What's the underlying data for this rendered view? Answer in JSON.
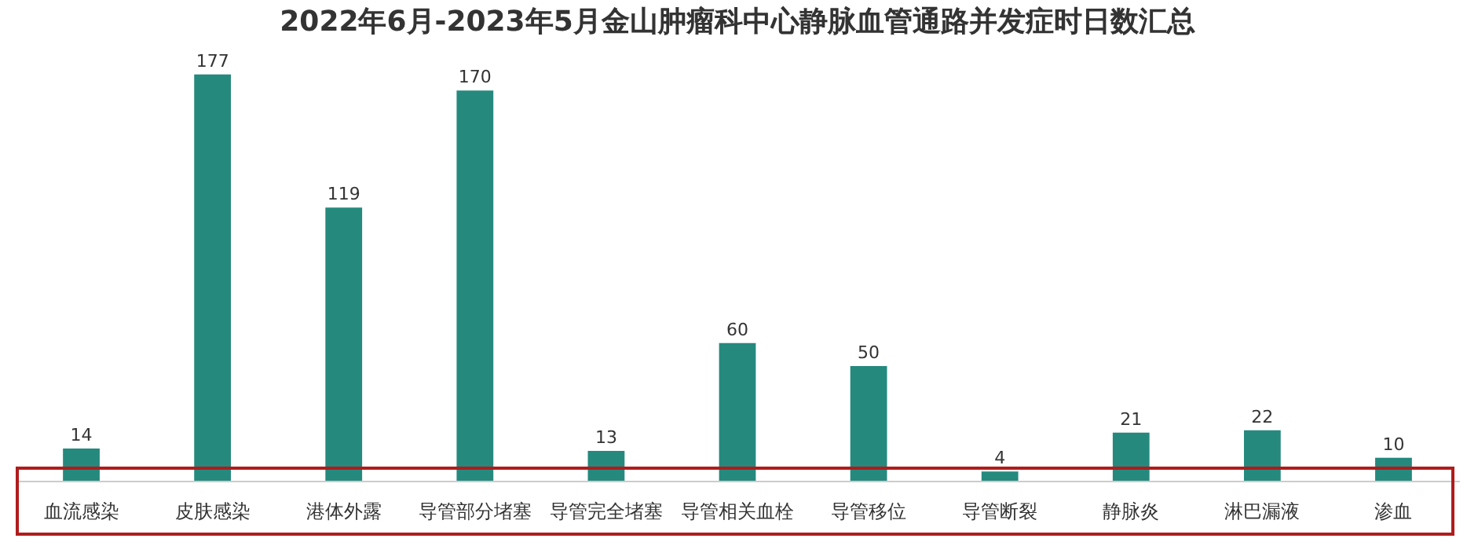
{
  "chart_data": {
    "type": "bar",
    "title": "2022年6月-2023年5月金山肿瘤科中心静脉血管通路并发症时日数汇总",
    "categories": [
      "血流感染",
      "皮肤感染",
      "港体外露",
      "导管部分堵塞",
      "导管完全堵塞",
      "导管相关血栓",
      "导管移位",
      "导管断裂",
      "静脉炎",
      "淋巴漏液",
      "渗血"
    ],
    "values": [
      14,
      177,
      119,
      170,
      13,
      60,
      50,
      4,
      21,
      22,
      10
    ],
    "color": "#26897e",
    "tick_labels": "x",
    "data_labels": true
  }
}
